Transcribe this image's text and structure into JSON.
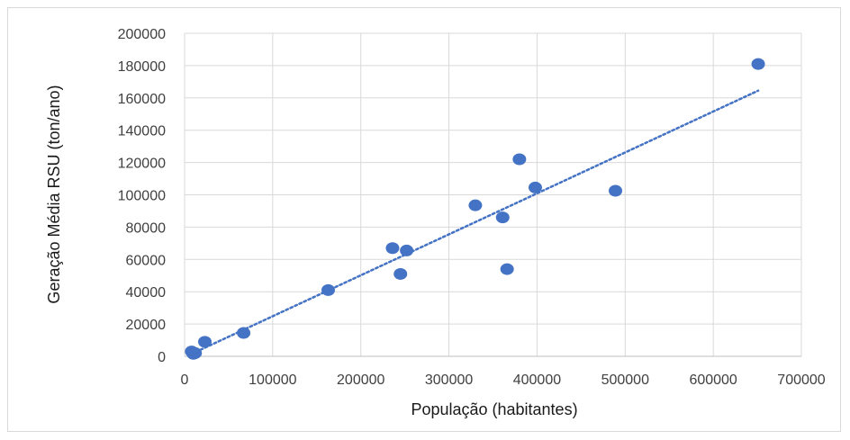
{
  "chart_data": {
    "type": "scatter",
    "title": "",
    "xlabel": "População  (habitantes)",
    "ylabel": "Geração Média RSU (ton/ano)",
    "xlim": [
      0,
      700000
    ],
    "ylim": [
      0,
      200000
    ],
    "x_ticks": [
      "0",
      "100000",
      "200000",
      "300000",
      "400000",
      "500000",
      "600000",
      "700000"
    ],
    "y_ticks": [
      "0",
      "20000",
      "40000",
      "60000",
      "80000",
      "100000",
      "120000",
      "140000",
      "160000",
      "180000",
      "200000"
    ],
    "grid": true,
    "legend": "none",
    "colors": {
      "points": "#4472C4",
      "trendline": "#4472C4",
      "grid": "#d9d9d9",
      "axis": "#bfbfbf"
    },
    "points": [
      {
        "x": 8000,
        "y": 3000
      },
      {
        "x": 10000,
        "y": 1500
      },
      {
        "x": 12000,
        "y": 2000
      },
      {
        "x": 23000,
        "y": 9000
      },
      {
        "x": 67000,
        "y": 14500
      },
      {
        "x": 163000,
        "y": 41000
      },
      {
        "x": 236000,
        "y": 67000
      },
      {
        "x": 245000,
        "y": 51000
      },
      {
        "x": 252000,
        "y": 65500
      },
      {
        "x": 330000,
        "y": 93500
      },
      {
        "x": 361000,
        "y": 86000
      },
      {
        "x": 366000,
        "y": 54000
      },
      {
        "x": 380000,
        "y": 122000
      },
      {
        "x": 398000,
        "y": 104500
      },
      {
        "x": 489000,
        "y": 102500
      },
      {
        "x": 651000,
        "y": 181000
      }
    ],
    "trendline": {
      "style": "dotted",
      "x_start": 8000,
      "x_end": 651000,
      "y_start": 1500,
      "y_end": 164500
    }
  }
}
